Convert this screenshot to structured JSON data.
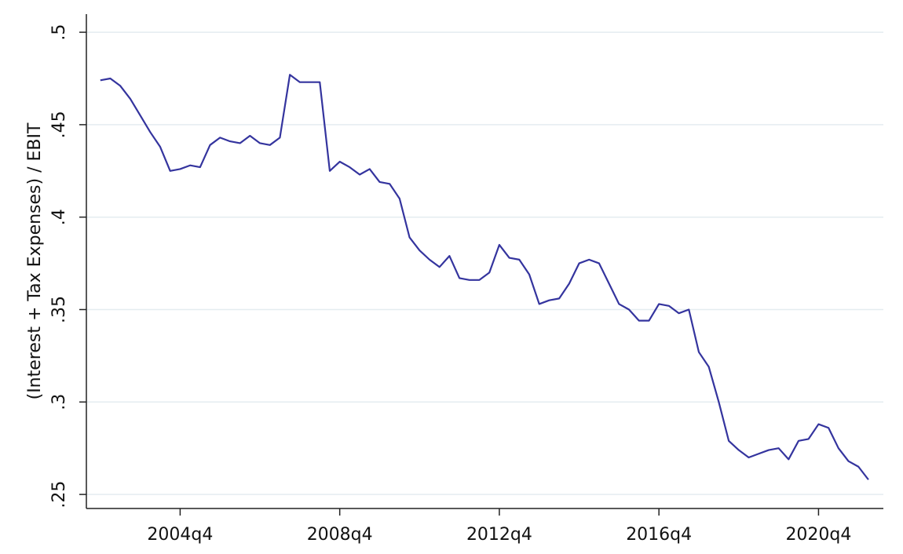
{
  "chart_data": {
    "type": "line",
    "y_label": "(Interest + Tax Expenses) / EBIT",
    "x": [
      171,
      172,
      173,
      174,
      175,
      176,
      177,
      178,
      179,
      180,
      181,
      182,
      183,
      184,
      185,
      186,
      187,
      188,
      189,
      190,
      191,
      192,
      193,
      194,
      195,
      196,
      197,
      198,
      199,
      200,
      201,
      202,
      203,
      204,
      205,
      206,
      207,
      208,
      209,
      210,
      211,
      212,
      213,
      214,
      215,
      216,
      217,
      218,
      219,
      220,
      221,
      222,
      223,
      224,
      225,
      226,
      227,
      228,
      229,
      230,
      231,
      232,
      233,
      234,
      235,
      236,
      237,
      238,
      239,
      240,
      241,
      242,
      243,
      244,
      245,
      246,
      247,
      248
    ],
    "series": [
      {
        "color": "#34349e",
        "values": [
          0.474,
          0.475,
          0.471,
          0.464,
          0.455,
          0.446,
          0.438,
          0.425,
          0.426,
          0.428,
          0.427,
          0.439,
          0.443,
          0.441,
          0.44,
          0.444,
          0.44,
          0.439,
          0.443,
          0.477,
          0.473,
          0.473,
          0.473,
          0.425,
          0.43,
          0.427,
          0.423,
          0.426,
          0.419,
          0.418,
          0.41,
          0.389,
          0.382,
          0.377,
          0.373,
          0.379,
          0.367,
          0.366,
          0.366,
          0.37,
          0.385,
          0.378,
          0.377,
          0.369,
          0.353,
          0.355,
          0.356,
          0.364,
          0.375,
          0.377,
          0.375,
          0.364,
          0.353,
          0.35,
          0.344,
          0.344,
          0.353,
          0.352,
          0.348,
          0.35,
          0.327,
          0.319,
          0.3,
          0.279,
          0.274,
          0.27,
          0.272,
          0.274,
          0.275,
          0.269,
          0.279,
          0.28,
          0.288,
          0.286,
          0.275,
          0.268,
          0.265,
          0.258
        ]
      }
    ],
    "xlim": [
      169.6,
      249.5
    ],
    "xticks": [
      {
        "value": 179,
        "label": "2004q4"
      },
      {
        "value": 195,
        "label": "2008q4"
      },
      {
        "value": 211,
        "label": "2012q4"
      },
      {
        "value": 227,
        "label": "2016q4"
      },
      {
        "value": 243,
        "label": "2020q4"
      }
    ],
    "ylim": [
      0.2424,
      0.5098
    ],
    "yticks": [
      {
        "value": 0.25,
        "label": ".25"
      },
      {
        "value": 0.3,
        "label": ".3"
      },
      {
        "value": 0.35,
        "label": ".35"
      },
      {
        "value": 0.4,
        "label": ".4"
      },
      {
        "value": 0.45,
        "label": ".45"
      },
      {
        "value": 0.5,
        "label": ".5"
      }
    ],
    "grid": true
  }
}
